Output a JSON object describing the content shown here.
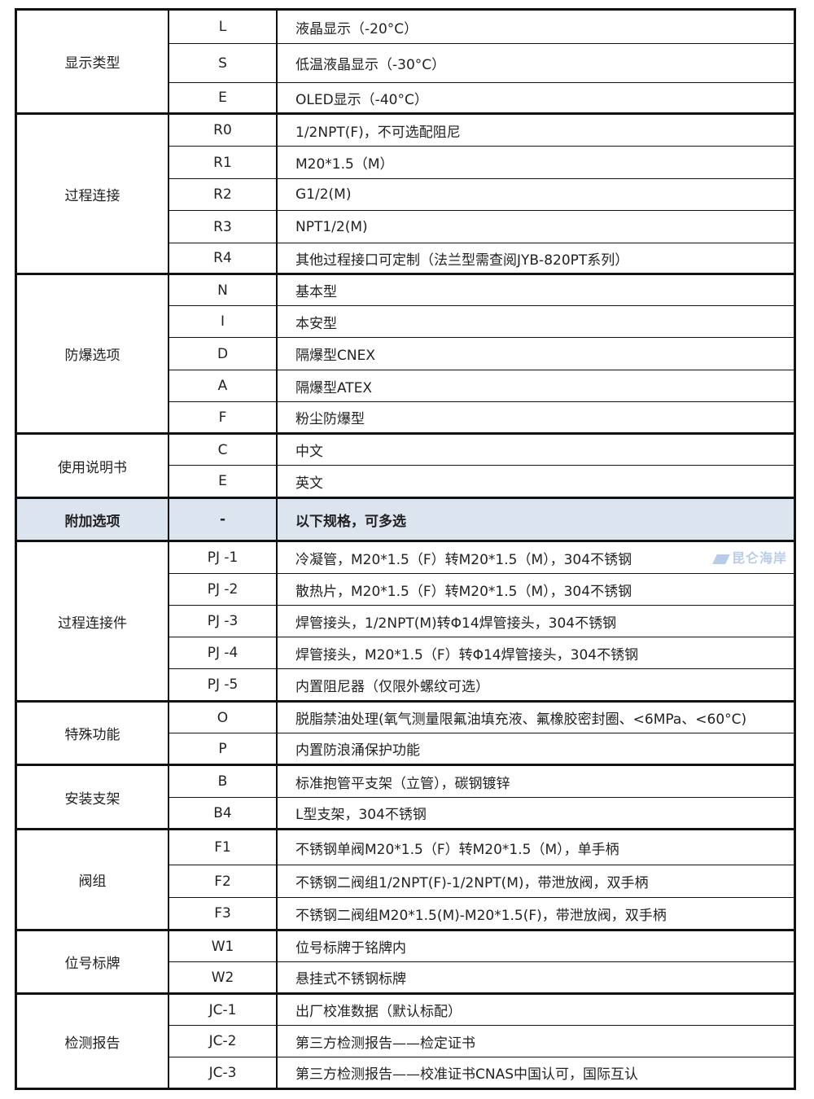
{
  "watermark": {
    "logo_text": "昆仑海岸",
    "color": "#7ea3dc"
  },
  "header_bg": "#dbe4ef",
  "groups": [
    {
      "category": "显示类型",
      "rows": [
        {
          "code": "L",
          "desc": "液晶显示（-20°C）"
        },
        {
          "code": "S",
          "desc": "低温液晶显示（-30°C）"
        },
        {
          "code": "E",
          "desc": "OLED显示（-40°C）"
        }
      ]
    },
    {
      "category": "过程连接",
      "rows": [
        {
          "code": "R0",
          "desc": "1/2NPT(F)，不可选配阻尼"
        },
        {
          "code": "R1",
          "desc": "M20*1.5（M）"
        },
        {
          "code": "R2",
          "desc": "G1/2(M)"
        },
        {
          "code": "R3",
          "desc": "NPT1/2(M)"
        },
        {
          "code": "R4",
          "desc": "其他过程接口可定制（法兰型需查阅JYB-820PT系列）"
        }
      ]
    },
    {
      "category": "防爆选项",
      "rows": [
        {
          "code": "N",
          "desc": "基本型"
        },
        {
          "code": "I",
          "desc": "本安型"
        },
        {
          "code": "D",
          "desc": "隔爆型CNEX"
        },
        {
          "code": "A",
          "desc": "隔爆型ATEX"
        },
        {
          "code": "F",
          "desc": "粉尘防爆型"
        }
      ]
    },
    {
      "category": "使用说明书",
      "rows": [
        {
          "code": "C",
          "desc": "中文"
        },
        {
          "code": "E",
          "desc": "英文"
        }
      ]
    },
    {
      "category": "附加选项",
      "header": true,
      "rows": [
        {
          "code": "-",
          "desc": "以下规格，可多选"
        }
      ]
    },
    {
      "category": "过程连接件",
      "rows": [
        {
          "code": "PJ -1",
          "desc": "冷凝管，M20*1.5（F）转M20*1.5（M），304不锈钢"
        },
        {
          "code": "PJ -2",
          "desc": "散热片，M20*1.5（F）转M20*1.5（M），304不锈钢"
        },
        {
          "code": "PJ -3",
          "desc": "焊管接头，1/2NPT(M)转Φ14焊管接头，304不锈钢"
        },
        {
          "code": "PJ -4",
          "desc": "焊管接头，M20*1.5（F）转Φ14焊管接头，304不锈钢"
        },
        {
          "code": "PJ -5",
          "desc": "内置阻尼器（仅限外螺纹可选）"
        }
      ]
    },
    {
      "category": "特殊功能",
      "rows": [
        {
          "code": "O",
          "desc": "脱脂禁油处理(氧气测量限氟油填充液、氟橡胶密封圈、<6MPa、<60°C)"
        },
        {
          "code": "P",
          "desc": "内置防浪涌保护功能"
        }
      ]
    },
    {
      "category": "安装支架",
      "rows": [
        {
          "code": "B",
          "desc": "标准抱管平支架（立管），碳钢镀锌"
        },
        {
          "code": "B4",
          "desc": "L型支架，304不锈钢"
        }
      ]
    },
    {
      "category": "阀组",
      "rows": [
        {
          "code": "F1",
          "desc": "不锈钢单阀M20*1.5（F）转M20*1.5（M），单手柄"
        },
        {
          "code": "F2",
          "desc": "不锈钢二阀组1/2NPT(F)-1/2NPT(M)，带泄放阀，双手柄"
        },
        {
          "code": "F3",
          "desc": "不锈钢二阀组M20*1.5(M)-M20*1.5(F)，带泄放阀，双手柄"
        }
      ]
    },
    {
      "category": "位号标牌",
      "rows": [
        {
          "code": "W1",
          "desc": "位号标牌于铭牌内"
        },
        {
          "code": "W2",
          "desc": "悬挂式不锈钢标牌"
        }
      ]
    },
    {
      "category": "检测报告",
      "rows": [
        {
          "code": "JC-1",
          "desc": "出厂校准数据（默认标配）"
        },
        {
          "code": "JC-2",
          "desc": "第三方检测报告——检定证书"
        },
        {
          "code": "JC-3",
          "desc": "第三方检测报告——校准证书CNAS中国认可，国际互认"
        }
      ]
    }
  ]
}
